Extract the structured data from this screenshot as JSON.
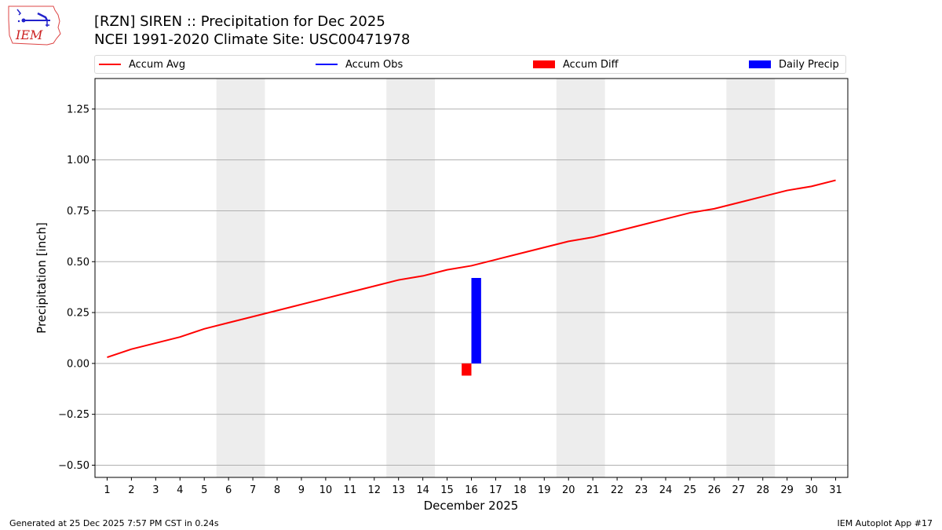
{
  "header": {
    "title_line1": "[RZN] SIREN :: Precipitation for Dec 2025",
    "title_line2": "NCEI 1991-2020 Climate Site: USC00471978",
    "logo_text": "IEM"
  },
  "legend": [
    {
      "label": "Accum Avg",
      "kind": "line",
      "color": "#ff0000"
    },
    {
      "label": "Accum Obs",
      "kind": "line",
      "color": "#0000ff"
    },
    {
      "label": "Accum Diff",
      "kind": "patch",
      "color": "#ff0000"
    },
    {
      "label": "Daily Precip",
      "kind": "patch",
      "color": "#0000ff"
    }
  ],
  "footer": {
    "left": "Generated at 25 Dec 2025 7:57 PM CST in 0.24s",
    "right": "IEM Autoplot App #17"
  },
  "colors": {
    "accum_avg": "#ff0000",
    "accum_obs": "#0000ff",
    "accum_diff": "#ff0000",
    "daily_precip": "#0000ff",
    "weekend_shade": "#ededed",
    "grid": "#b0b0b0"
  },
  "chart_data": {
    "type": "line",
    "title": "[RZN] SIREN :: Precipitation for Dec 2025\nNCEI 1991-2020 Climate Site: USC00471978",
    "xlabel": "December 2025",
    "ylabel": "Precipitation [inch]",
    "x": [
      1,
      2,
      3,
      4,
      5,
      6,
      7,
      8,
      9,
      10,
      11,
      12,
      13,
      14,
      15,
      16,
      17,
      18,
      19,
      20,
      21,
      22,
      23,
      24,
      25,
      26,
      27,
      28,
      29,
      30,
      31
    ],
    "xticks": [
      "1",
      "2",
      "3",
      "4",
      "5",
      "6",
      "7",
      "8",
      "9",
      "10",
      "11",
      "12",
      "13",
      "14",
      "15",
      "16",
      "17",
      "18",
      "19",
      "20",
      "21",
      "22",
      "23",
      "24",
      "25",
      "26",
      "27",
      "28",
      "29",
      "30",
      "31"
    ],
    "yticks": [
      "−0.50",
      "−0.25",
      "0.00",
      "0.25",
      "0.50",
      "0.75",
      "1.00",
      "1.25"
    ],
    "ytick_values": [
      -0.5,
      -0.25,
      0,
      0.25,
      0.5,
      0.75,
      1.0,
      1.25
    ],
    "xlim": [
      0.5,
      31.5
    ],
    "ylim": [
      -0.56,
      1.4
    ],
    "grid": "y",
    "legend_position": "top",
    "weekend_shading": [
      [
        5.5,
        7.5
      ],
      [
        12.5,
        14.5
      ],
      [
        19.5,
        21.5
      ],
      [
        26.5,
        28.5
      ]
    ],
    "series": [
      {
        "name": "Accum Avg",
        "type": "line",
        "color": "#ff0000",
        "values": [
          0.03,
          0.07,
          0.1,
          0.13,
          0.17,
          0.2,
          0.23,
          0.26,
          0.29,
          0.32,
          0.35,
          0.38,
          0.41,
          0.43,
          0.46,
          0.48,
          0.51,
          0.54,
          0.57,
          0.6,
          0.62,
          0.65,
          0.68,
          0.71,
          0.74,
          0.76,
          0.79,
          0.82,
          0.85,
          0.87,
          0.9
        ]
      },
      {
        "name": "Accum Obs",
        "type": "line",
        "color": "#0000ff",
        "values": []
      },
      {
        "name": "Accum Diff",
        "type": "bar",
        "color": "#ff0000",
        "points": [
          {
            "x": 16,
            "value": -0.06
          }
        ]
      },
      {
        "name": "Daily Precip",
        "type": "bar",
        "color": "#0000ff",
        "points": [
          {
            "x": 16,
            "value": 0.42
          }
        ]
      }
    ]
  }
}
